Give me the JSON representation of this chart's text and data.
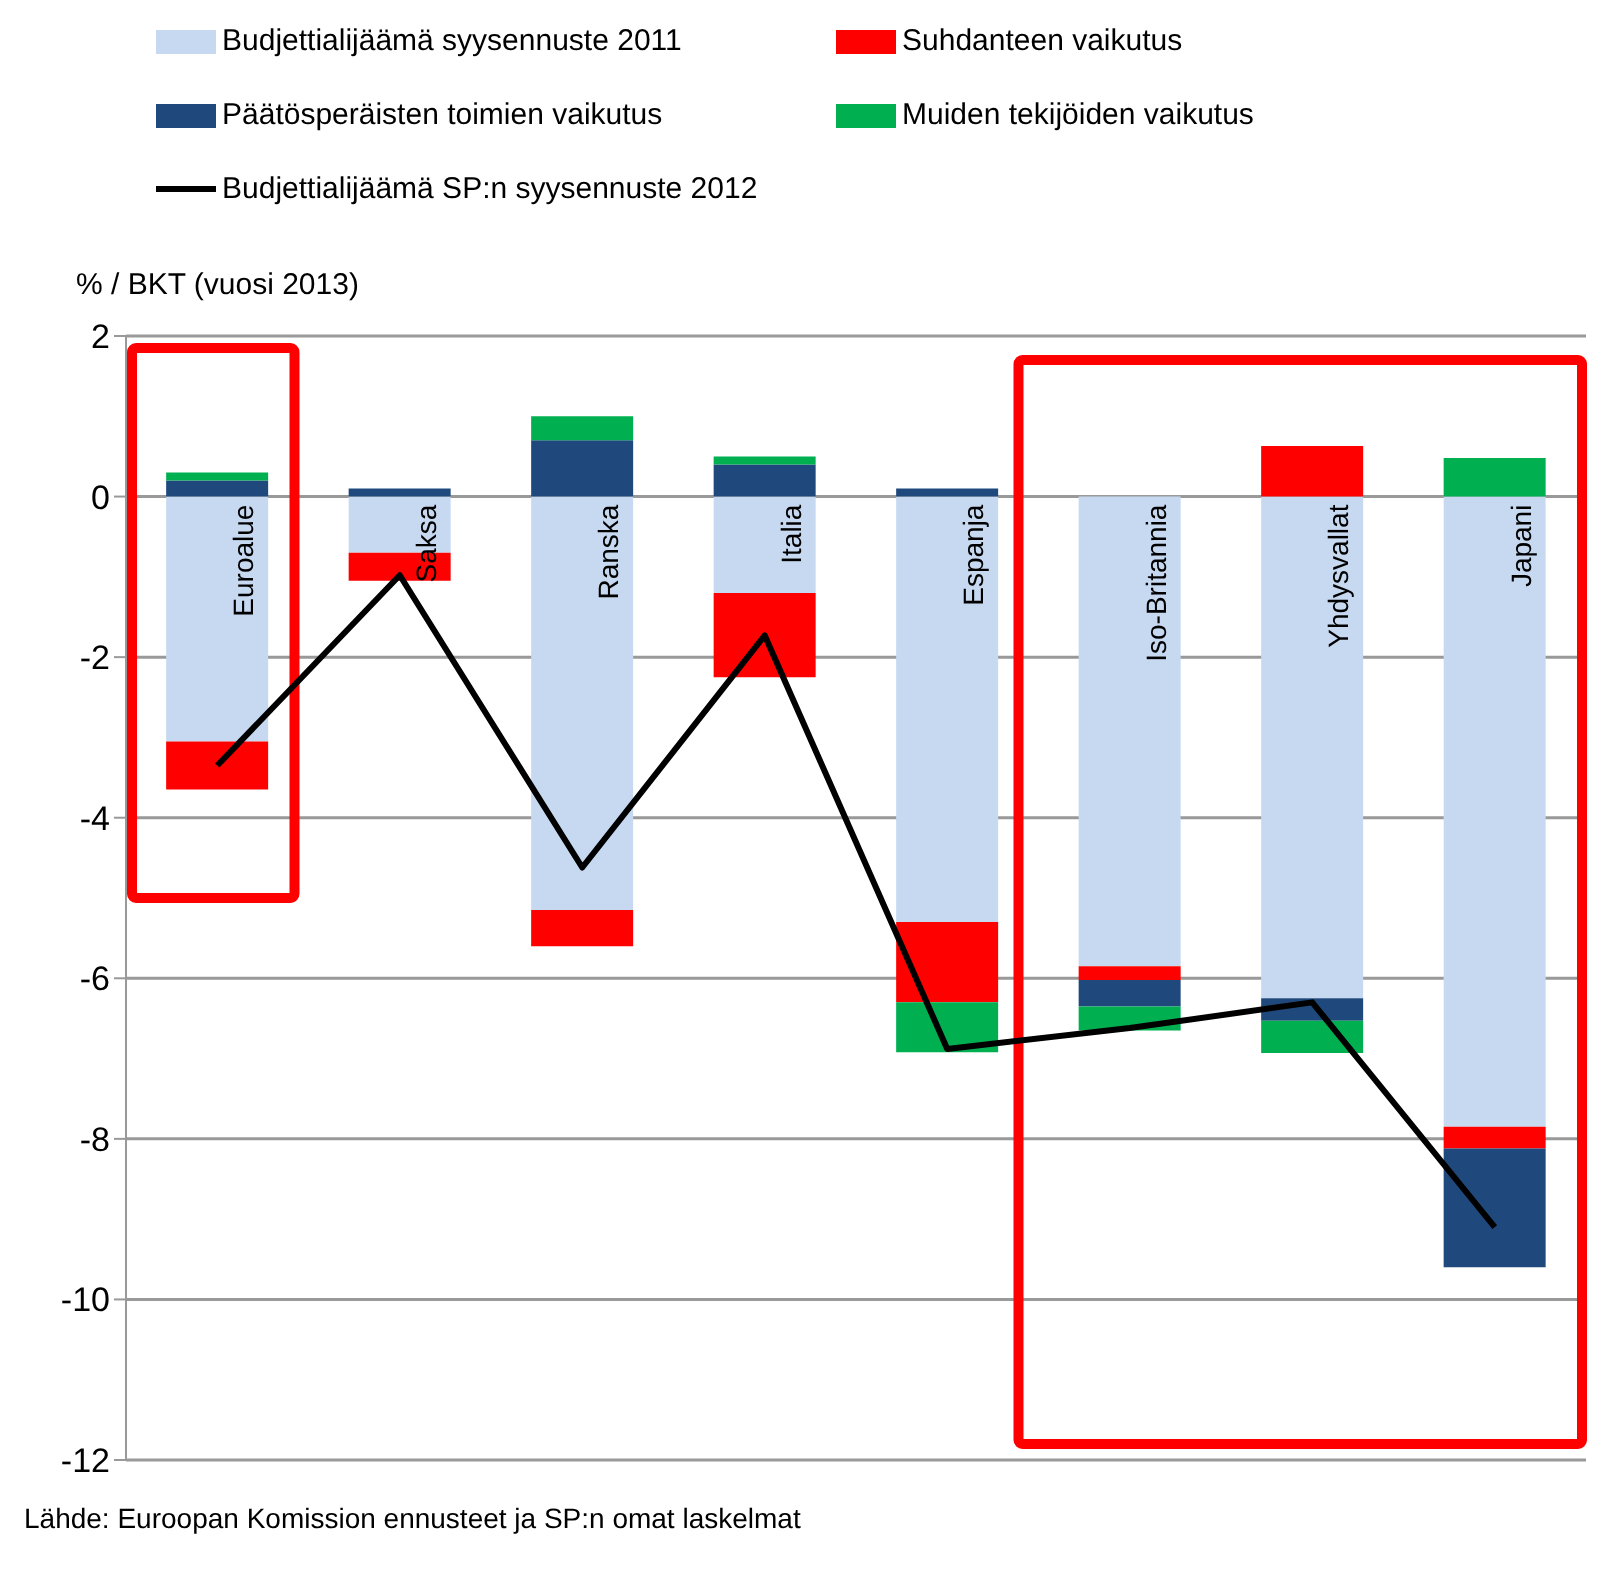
{
  "chart_data": {
    "type": "bar",
    "stacked": true,
    "ylabel": "% / BKT (vuosi 2013)",
    "categories": [
      "Euroalue",
      "Saksa",
      "Ranska",
      "Italia",
      "Espanja",
      "Iso-Britannia",
      "Yhdysvallat",
      "Japani"
    ],
    "series": [
      {
        "name": "Budjettialijäämä syysennuste 2011",
        "color": "#c6d9f1",
        "values": [
          -3.05,
          -0.7,
          -5.15,
          -1.2,
          -5.3,
          -5.85,
          -6.25,
          -7.85
        ]
      },
      {
        "name": "Suhdanteen vaikutus",
        "color": "#ff0000",
        "values": [
          -0.6,
          -0.35,
          -0.45,
          -1.05,
          -1.0,
          -0.17,
          0.63,
          -0.27
        ]
      },
      {
        "name": "Päätösperäisten toimien vaikutus",
        "color": "#1f497d",
        "values": [
          0.2,
          0.1,
          0.7,
          0.4,
          0.1,
          -0.33,
          -0.28,
          -1.48
        ]
      },
      {
        "name": "Muiden tekijöiden vaikutus",
        "color": "#00b050",
        "values": [
          0.1,
          null,
          0.3,
          0.1,
          -0.62,
          -0.3,
          -0.4,
          0.48
        ]
      },
      {
        "name": "Budjettialijäämä SP:n syysennuste 2012",
        "type": "line",
        "color": "#000000",
        "values": [
          -3.35,
          -0.98,
          -4.62,
          -1.73,
          -6.88,
          -6.62,
          -6.3,
          -9.1
        ]
      }
    ],
    "ylim": [
      -12,
      2
    ],
    "yticks": [
      -12,
      -10,
      -8,
      -6,
      -4,
      -2,
      0,
      2
    ],
    "grid": "y",
    "legend": "top",
    "marker": "none",
    "line_style": "solid",
    "annotations": [
      "Lähde: Euroopan Komission ennusteet ja SP:n omat laskelmat"
    ]
  }
}
